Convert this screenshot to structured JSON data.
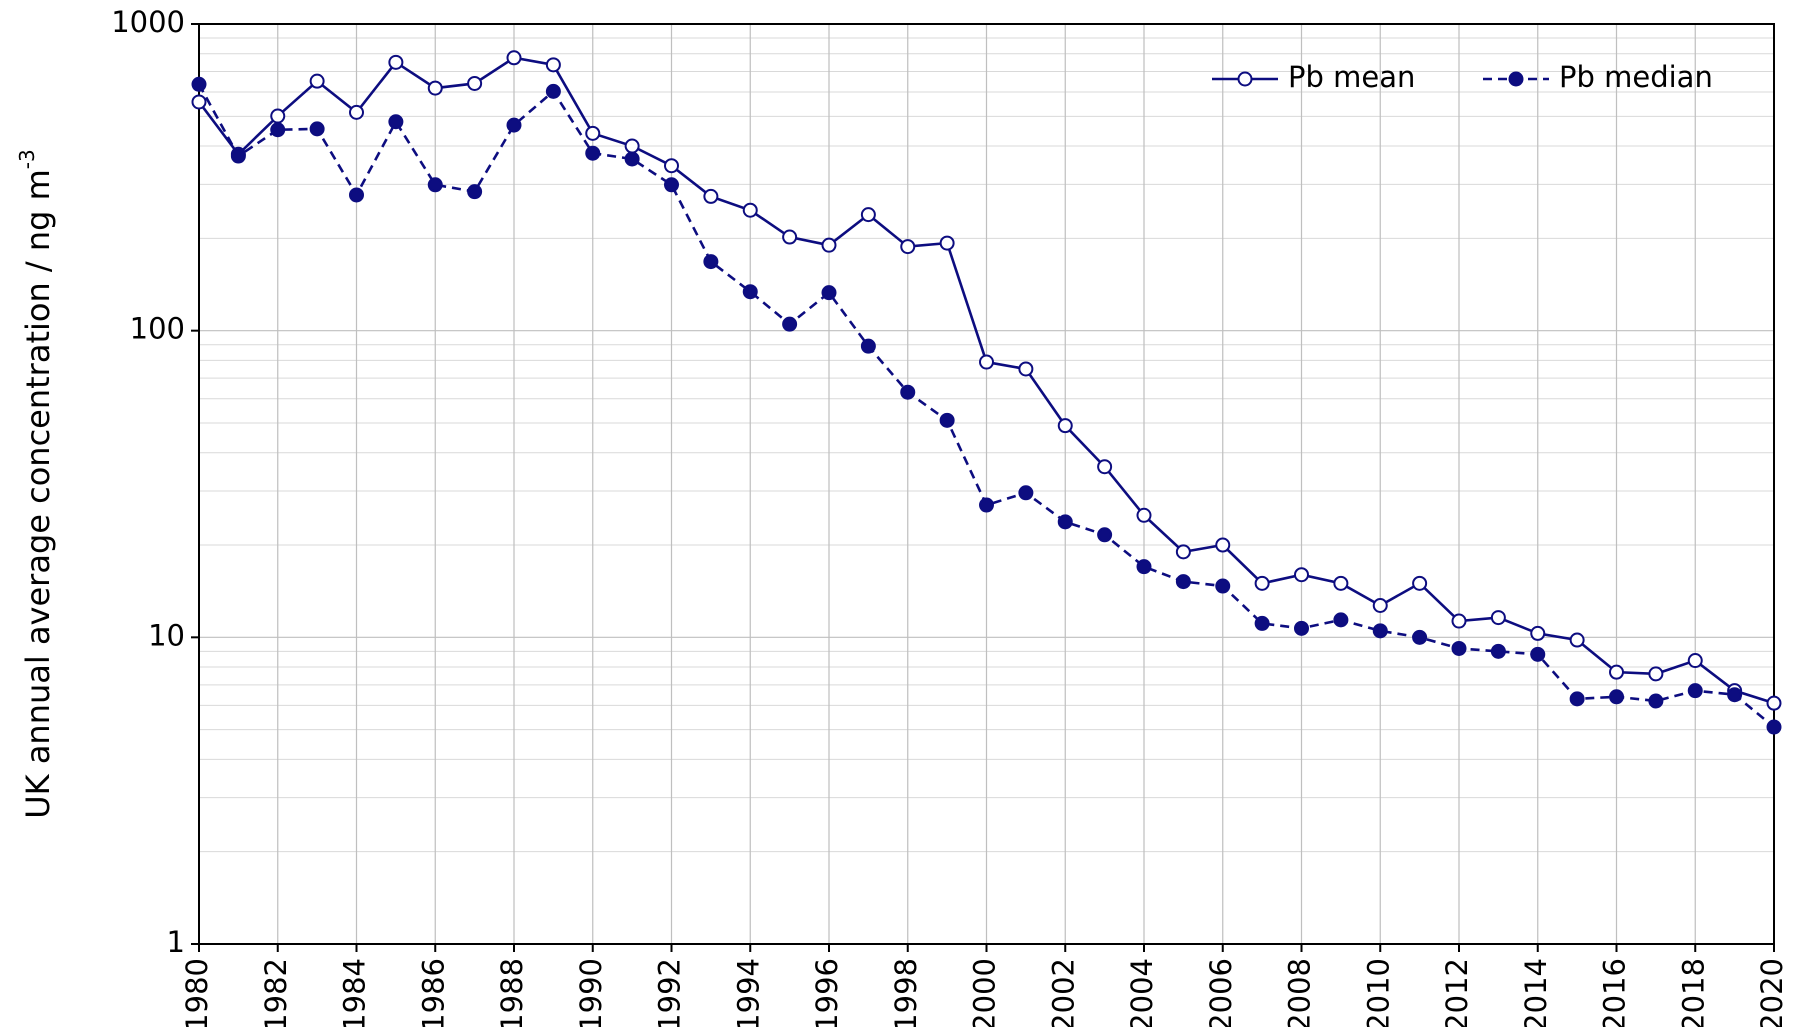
{
  "chart_data": {
    "type": "line",
    "y_label": "UK annual average concentration / ng m",
    "y_label_superscript": "-3",
    "x": [
      1980,
      1981,
      1982,
      1983,
      1984,
      1985,
      1986,
      1987,
      1988,
      1989,
      1990,
      1991,
      1992,
      1993,
      1994,
      1995,
      1996,
      1997,
      1998,
      1999,
      2000,
      2001,
      2002,
      2003,
      2004,
      2005,
      2006,
      2007,
      2008,
      2009,
      2010,
      2011,
      2012,
      2013,
      2014,
      2015,
      2016,
      2017,
      2018,
      2019,
      2020
    ],
    "series": [
      {
        "name": "Pb mean",
        "color": "#0d0d80",
        "line_style": "solid",
        "marker": "open",
        "values": [
          557,
          376,
          501,
          651,
          515,
          750,
          618,
          640,
          776,
          736,
          440,
          400,
          345,
          274,
          247,
          202,
          190,
          239,
          188,
          193,
          79,
          75,
          49,
          36,
          25,
          19,
          20,
          15,
          16,
          15,
          12.7,
          15,
          11.3,
          11.6,
          10.3,
          9.8,
          7.7,
          7.6,
          8.4,
          6.7,
          6.1
        ]
      },
      {
        "name": "Pb median",
        "color": "#0d0d80",
        "line_style": "dashed",
        "marker": "filled",
        "values": [
          636,
          371,
          452,
          455,
          277,
          480,
          299,
          284,
          468,
          603,
          379,
          363,
          299,
          168,
          134,
          105,
          133,
          89,
          63,
          51,
          27,
          29.6,
          23.8,
          21.6,
          17,
          15.2,
          14.7,
          11.1,
          10.7,
          11.4,
          10.5,
          10,
          9.2,
          9.0,
          8.8,
          6.3,
          6.4,
          6.2,
          6.7,
          6.5,
          5.1
        ]
      }
    ],
    "xlim": [
      1980,
      2020
    ],
    "xticks": [
      1980,
      1982,
      1984,
      1986,
      1988,
      1990,
      1992,
      1994,
      1996,
      1998,
      2000,
      2002,
      2004,
      2006,
      2008,
      2010,
      2012,
      2014,
      2016,
      2018,
      2020
    ],
    "ylim": [
      1,
      1000
    ],
    "yticks": [
      1,
      10,
      100,
      1000
    ],
    "log_scale_y": true,
    "grid": true,
    "minor_grid": true,
    "legend": "upper-right"
  }
}
